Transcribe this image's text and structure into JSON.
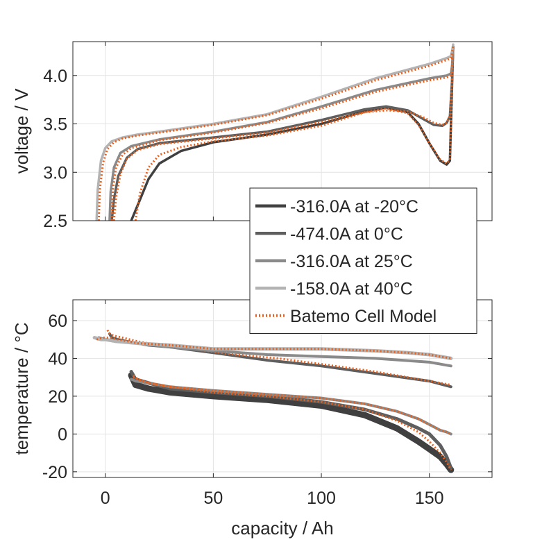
{
  "chart_data": [
    {
      "type": "line",
      "title": "",
      "xlabel": "",
      "ylabel": "voltage / V",
      "xlim": [
        -15,
        179
      ],
      "ylim": [
        2.5,
        4.35
      ],
      "xticks": [
        0,
        50,
        100,
        150
      ],
      "yticks": [
        2.5,
        3.0,
        3.5,
        4.0
      ],
      "ytick_labels": [
        "2.5",
        "3.0",
        "3.5",
        "4.0"
      ],
      "grid": true,
      "legend": {
        "placement": "bottom-right",
        "entries": [
          {
            "label": "-316.0A at -20°C",
            "color": "#404040",
            "style": "solid"
          },
          {
            "label": "-474.0A at 0°C",
            "color": "#5e5e5e",
            "style": "solid"
          },
          {
            "label": "-316.0A at 25°C",
            "color": "#8a8a8a",
            "style": "solid"
          },
          {
            "label": "-158.0A at 40°C",
            "color": "#b3b3b3",
            "style": "solid"
          },
          {
            "label": "Batemo Cell Model",
            "color": "#e8601c",
            "style": "dotted"
          }
        ]
      },
      "series": [
        {
          "name": "-316.0A at -20°C",
          "color": "#404040",
          "dash": "",
          "x": [
            12,
            15,
            20,
            25,
            35,
            50,
            75,
            100,
            120,
            130,
            140,
            145,
            150,
            155,
            158,
            159.5,
            160.5,
            161
          ],
          "y": [
            2.5,
            2.66,
            2.93,
            3.09,
            3.22,
            3.31,
            3.39,
            3.5,
            3.63,
            3.67,
            3.62,
            3.5,
            3.3,
            3.12,
            3.08,
            3.12,
            3.9,
            4.3
          ]
        },
        {
          "name": "Batemo Cell Model",
          "color": "#e8601c",
          "dash": "2 3",
          "x": [
            14,
            16,
            20,
            25,
            35,
            50,
            75,
            100,
            120,
            130,
            140,
            145,
            150,
            155,
            158,
            159.5,
            160.5,
            161
          ],
          "y": [
            2.5,
            2.78,
            3.05,
            3.18,
            3.26,
            3.32,
            3.38,
            3.48,
            3.62,
            3.66,
            3.61,
            3.49,
            3.3,
            3.13,
            3.09,
            3.13,
            3.9,
            4.3
          ]
        },
        {
          "name": "-474.0A at 0°C",
          "color": "#5e5e5e",
          "dash": "",
          "x": [
            3,
            4,
            6,
            10,
            15,
            25,
            50,
            75,
            100,
            120,
            130,
            140,
            148,
            152,
            156,
            158,
            159.5,
            160.5,
            161
          ],
          "y": [
            2.5,
            2.72,
            2.96,
            3.15,
            3.24,
            3.3,
            3.36,
            3.42,
            3.54,
            3.65,
            3.68,
            3.64,
            3.54,
            3.49,
            3.48,
            3.51,
            3.58,
            3.95,
            4.3
          ]
        },
        {
          "name": "Batemo Cell Model",
          "color": "#e8601c",
          "dash": "2 3",
          "x": [
            4,
            5,
            7,
            10,
            15,
            25,
            50,
            75,
            100,
            120,
            130,
            140,
            148,
            152,
            156,
            158,
            159.5,
            160.5,
            161
          ],
          "y": [
            2.5,
            2.74,
            2.98,
            3.14,
            3.23,
            3.29,
            3.35,
            3.41,
            3.52,
            3.62,
            3.64,
            3.63,
            3.56,
            3.51,
            3.49,
            3.51,
            3.58,
            3.95,
            4.3
          ]
        },
        {
          "name": "-316.0A at 25°C",
          "color": "#8a8a8a",
          "dash": "",
          "x": [
            2,
            2.5,
            4,
            7,
            12,
            25,
            50,
            75,
            100,
            125,
            150,
            158,
            160,
            160.5,
            161
          ],
          "y": [
            2.5,
            2.8,
            3.05,
            3.2,
            3.27,
            3.34,
            3.42,
            3.52,
            3.68,
            3.85,
            3.97,
            4.0,
            4.02,
            4.1,
            4.3
          ]
        },
        {
          "name": "Batemo Cell Model",
          "color": "#e8601c",
          "dash": "2 3",
          "x": [
            3,
            3.5,
            5,
            8,
            12,
            25,
            50,
            75,
            100,
            125,
            150,
            158,
            160,
            160.5,
            161
          ],
          "y": [
            2.5,
            2.82,
            3.05,
            3.18,
            3.25,
            3.33,
            3.41,
            3.51,
            3.66,
            3.83,
            3.95,
            3.98,
            4.0,
            4.1,
            4.3
          ]
        },
        {
          "name": "-158.0A at 40°C",
          "color": "#b3b3b3",
          "dash": "",
          "x": [
            -4,
            -3.5,
            -2,
            0,
            3,
            8,
            15,
            25,
            50,
            75,
            100,
            125,
            150,
            158,
            160,
            160.5,
            161
          ],
          "y": [
            2.5,
            2.82,
            3.12,
            3.25,
            3.32,
            3.36,
            3.39,
            3.42,
            3.5,
            3.6,
            3.78,
            3.97,
            4.12,
            4.18,
            4.2,
            4.25,
            4.32
          ]
        },
        {
          "name": "Batemo Cell Model",
          "color": "#e8601c",
          "dash": "2 3",
          "x": [
            -3,
            -2.5,
            -1,
            1,
            4,
            8,
            15,
            25,
            50,
            75,
            100,
            125,
            150,
            158,
            160,
            160.5,
            161
          ],
          "y": [
            2.5,
            2.82,
            3.1,
            3.24,
            3.31,
            3.35,
            3.38,
            3.41,
            3.49,
            3.59,
            3.76,
            3.95,
            4.1,
            4.16,
            4.18,
            4.24,
            4.31
          ]
        }
      ]
    },
    {
      "type": "line",
      "title": "",
      "xlabel": "capacity / Ah",
      "ylabel": "temperature / °C",
      "xlim": [
        -15,
        179
      ],
      "ylim": [
        -23,
        71
      ],
      "xticks": [
        0,
        50,
        100,
        150
      ],
      "xtick_labels": [
        "0",
        "50",
        "100",
        "150"
      ],
      "yticks": [
        -20,
        0,
        20,
        40,
        60
      ],
      "ytick_labels": [
        "-20",
        "0",
        "20",
        "40",
        "60"
      ],
      "grid": true,
      "series": [
        {
          "name": "-316.0A at -20°C",
          "color": "#404040",
          "dash": "",
          "width": 9,
          "x": [
            12,
            14,
            20,
            30,
            50,
            75,
            100,
            120,
            135,
            145,
            150,
            155,
            158,
            160
          ],
          "y": [
            31,
            26,
            24,
            22,
            20,
            18,
            15,
            10,
            3,
            -4,
            -8,
            -12,
            -16,
            -19
          ]
        },
        {
          "name": "-474.0A at 0°C",
          "color": "#5e5e5e",
          "dash": "",
          "width": 5,
          "x": [
            12,
            14,
            20,
            30,
            50,
            75,
            100,
            120,
            135,
            145,
            150,
            155,
            158,
            160
          ],
          "y": [
            33,
            29,
            27,
            24,
            22,
            20,
            17,
            13,
            8,
            3,
            0,
            -6,
            -12,
            -18
          ]
        },
        {
          "name": "-316.0A at 25°C",
          "color": "#8a8a8a",
          "dash": "",
          "width": 4,
          "x": [
            12,
            14,
            20,
            30,
            50,
            75,
            100,
            120,
            135,
            145,
            150,
            155,
            158,
            160
          ],
          "y": [
            29,
            28,
            27,
            25,
            23,
            21,
            19,
            16,
            12,
            8,
            5,
            2,
            1,
            0
          ]
        },
        {
          "name": "Batemo Cell Model",
          "color": "#e8601c",
          "dash": "2 3",
          "width": 3,
          "x": [
            13,
            15,
            20,
            30,
            50,
            75,
            100,
            120,
            135,
            145,
            150,
            155,
            158,
            160
          ],
          "y": [
            31,
            29,
            27,
            25,
            22,
            20,
            17,
            13,
            7,
            1,
            -4,
            -10,
            -15,
            -19
          ]
        },
        {
          "name": "Batemo Cell Model",
          "color": "#e8601c",
          "dash": "2 3",
          "width": 3,
          "x": [
            13,
            15,
            20,
            30,
            50,
            75,
            100,
            120,
            135,
            145,
            150,
            155,
            158,
            160
          ],
          "y": [
            30,
            29,
            27,
            25,
            23,
            21,
            19,
            16,
            12,
            8,
            5,
            2,
            1,
            0
          ]
        },
        {
          "name": "-474.0A at 0°C",
          "color": "#5e5e5e",
          "dash": "",
          "width": 4,
          "x": [
            2,
            3,
            6,
            10,
            20,
            30,
            50,
            75,
            100,
            125,
            150,
            160
          ],
          "y": [
            53,
            51,
            50,
            49,
            47,
            46,
            43,
            39,
            36,
            32,
            28,
            25
          ]
        },
        {
          "name": "Batemo Cell Model",
          "color": "#e8601c",
          "dash": "2 3",
          "width": 3,
          "x": [
            1,
            2,
            4,
            8,
            15,
            25,
            40,
            60,
            80,
            100,
            125,
            150,
            160
          ],
          "y": [
            55,
            53,
            52,
            51,
            49,
            47,
            45,
            42,
            40,
            37,
            33,
            28,
            26
          ]
        },
        {
          "name": "-316.0A at 25°C",
          "color": "#8a8a8a",
          "dash": "",
          "width": 4,
          "x": [
            -3,
            0,
            5,
            15,
            30,
            50,
            75,
            100,
            125,
            150,
            160
          ],
          "y": [
            51,
            50,
            49,
            48,
            46,
            44,
            42,
            41,
            40,
            38,
            36
          ]
        },
        {
          "name": "-158.0A at 40°C",
          "color": "#b3b3b3",
          "dash": "",
          "width": 5,
          "x": [
            -5,
            -2,
            0,
            5,
            15,
            30,
            50,
            75,
            100,
            125,
            140,
            150,
            160
          ],
          "y": [
            51,
            50,
            50,
            49,
            48,
            47,
            45,
            45,
            45,
            44,
            43,
            42,
            40
          ]
        },
        {
          "name": "Batemo Cell Model",
          "color": "#e8601c",
          "dash": "2 3",
          "width": 3,
          "x": [
            -4,
            -1,
            2,
            6,
            15,
            30,
            50,
            75,
            100,
            125,
            140,
            150,
            160
          ],
          "y": [
            50,
            51,
            51,
            50,
            48,
            47,
            45,
            45,
            45,
            44,
            43,
            42,
            40
          ]
        }
      ]
    }
  ]
}
